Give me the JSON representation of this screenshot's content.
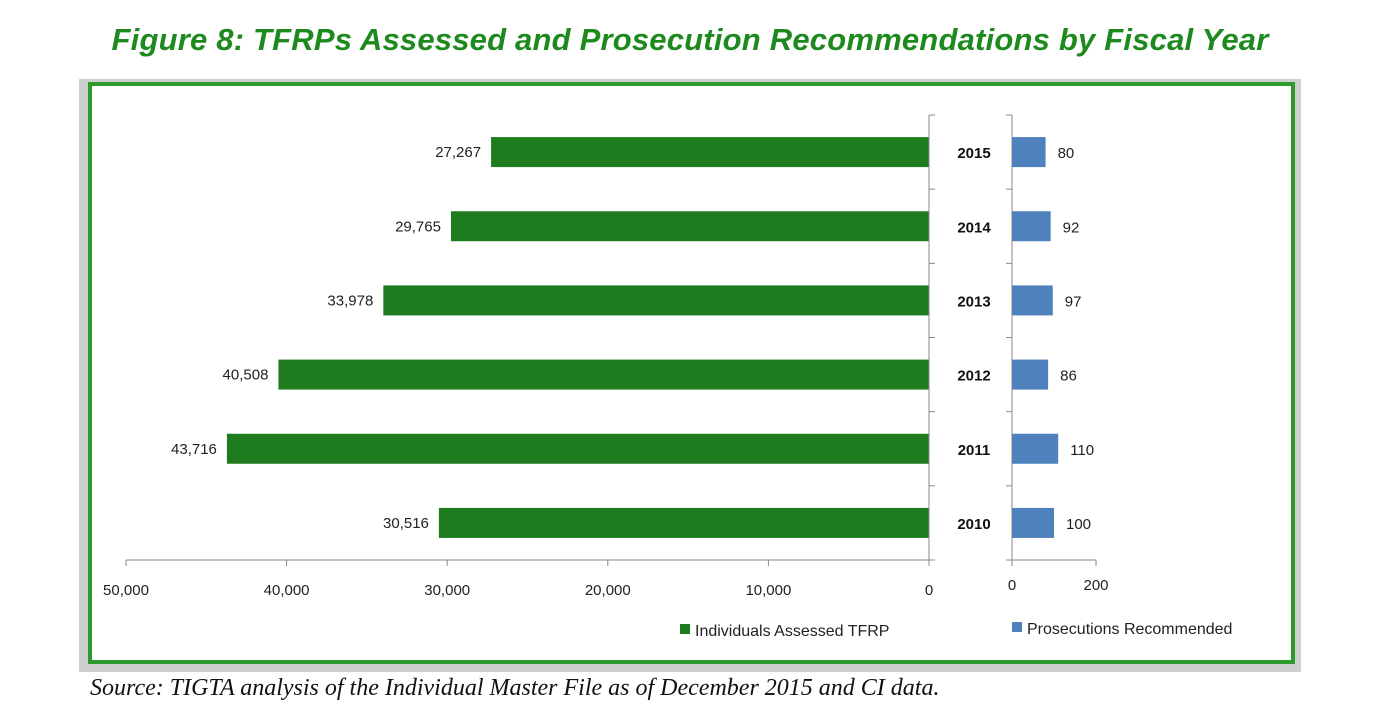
{
  "figure": {
    "title": "Figure 8:  TFRPs Assessed and Prosecution Recommendations by Fiscal Year",
    "source": "Source:  TIGTA analysis of the Individual Master File as of December 2015 and CI data."
  },
  "colors": {
    "left_bar": "#1e7b1e",
    "right_bar": "#4f81bd",
    "title": "#1e8a1e",
    "frame": "#2e9a2e"
  },
  "chart_data": [
    {
      "type": "bar",
      "orientation": "horizontal",
      "direction": "right-to-left",
      "categories": [
        "2015",
        "2014",
        "2013",
        "2012",
        "2011",
        "2010"
      ],
      "series": [
        {
          "name": "Individuals Assessed TFRP",
          "values": [
            27267,
            29765,
            33978,
            40508,
            43716,
            30516
          ]
        }
      ],
      "value_labels": [
        "27,267",
        "29,765",
        "33,978",
        "40,508",
        "43,716",
        "30,516"
      ],
      "xlim": [
        0,
        50000
      ],
      "ticks": [
        "50,000",
        "40,000",
        "30,000",
        "20,000",
        "10,000",
        "0"
      ],
      "legend": "bottom"
    },
    {
      "type": "bar",
      "orientation": "horizontal",
      "categories": [
        "2015",
        "2014",
        "2013",
        "2012",
        "2011",
        "2010"
      ],
      "series": [
        {
          "name": "Prosecutions Recommended",
          "values": [
            80,
            92,
            97,
            86,
            110,
            100
          ]
        }
      ],
      "value_labels": [
        "80",
        "92",
        "97",
        "86",
        "110",
        "100"
      ],
      "xlim": [
        0,
        200
      ],
      "ticks": [
        "0",
        "200"
      ],
      "legend": "bottom"
    }
  ]
}
